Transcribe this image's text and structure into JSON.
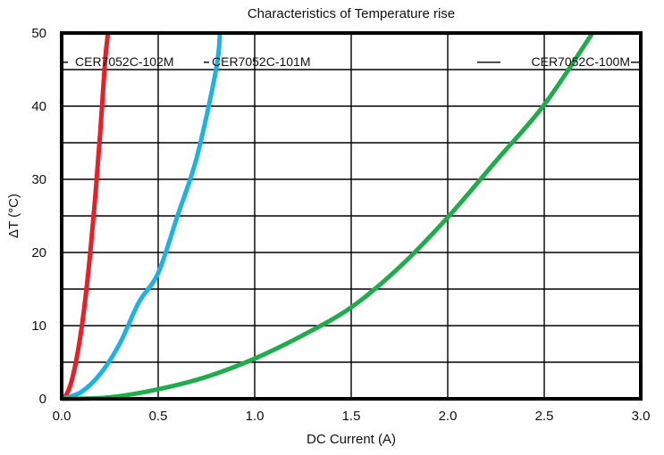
{
  "chart_data": {
    "type": "line",
    "title": "Characteristics of Temperature rise",
    "xlabel": "DC Current (A)",
    "ylabel": "ΔT (°C)",
    "xlim": [
      0,
      3.0
    ],
    "ylim": [
      0,
      50
    ],
    "x_ticks": [
      "0.0",
      "0.5",
      "1.0",
      "1.5",
      "2.0",
      "2.5",
      "3.0"
    ],
    "y_ticks": [
      "0",
      "10",
      "20",
      "30",
      "40",
      "50"
    ],
    "grid": true,
    "series": [
      {
        "name": "CER7052C-102M",
        "color": "#ee1c24",
        "x": [
          0,
          0.025,
          0.05,
          0.075,
          0.1,
          0.125,
          0.15,
          0.175,
          0.2,
          0.225,
          0.24
        ],
        "y": [
          0,
          0.6,
          2.3,
          5.2,
          9.1,
          14.2,
          20.5,
          27.9,
          36.5,
          46.2,
          50
        ]
      },
      {
        "name": "CER7052C-101M",
        "color": "#1bb2e9",
        "x": [
          0,
          0.1,
          0.2,
          0.3,
          0.4,
          0.5,
          0.6,
          0.7,
          0.8,
          0.82
        ],
        "y": [
          0,
          0.9,
          3.4,
          7.5,
          13.2,
          17.2,
          25.0,
          33.0,
          45.0,
          50
        ]
      },
      {
        "name": "CER7052C-100M",
        "color": "#1fad4b",
        "x": [
          0,
          0.25,
          0.5,
          0.75,
          1.0,
          1.25,
          1.5,
          1.75,
          2.0,
          2.25,
          2.5,
          2.75
        ],
        "y": [
          0,
          0.2,
          1.3,
          3.0,
          5.5,
          8.7,
          12.5,
          18.0,
          24.8,
          32.5,
          40.2,
          50
        ]
      }
    ]
  }
}
